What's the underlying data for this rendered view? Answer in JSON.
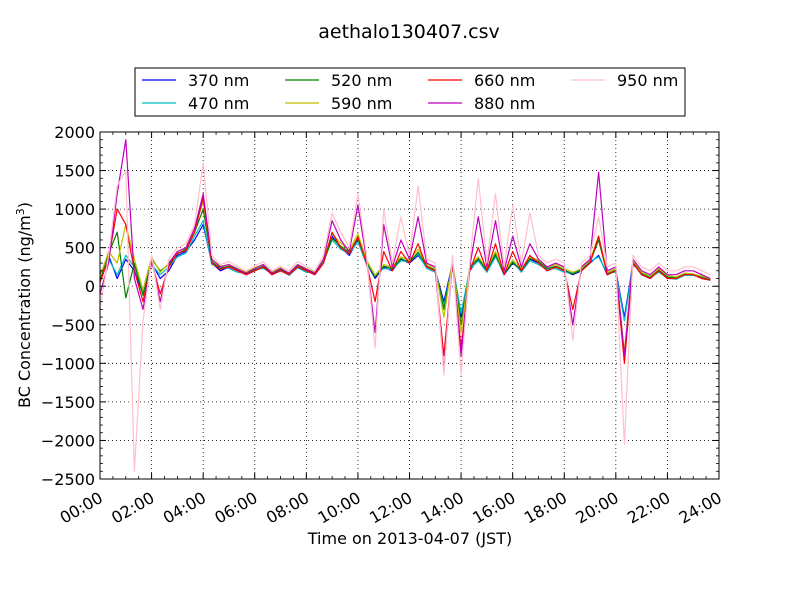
{
  "chart_data": {
    "type": "line",
    "title": "aethalo130407.csv",
    "xlabel": "Time on 2013-04-07 (JST)",
    "ylabel": "BC Concentration (ng/m",
    "ylabel_superscript": "3",
    "ylabel_suffix": ")",
    "xlim": [
      "00:00",
      "24:00"
    ],
    "ylim": [
      -2500,
      2000
    ],
    "x_tick_labels": [
      "00:00",
      "02:00",
      "04:00",
      "06:00",
      "08:00",
      "10:00",
      "12:00",
      "14:00",
      "16:00",
      "18:00",
      "20:00",
      "22:00",
      "24:00"
    ],
    "y_tick_labels": [
      "2000",
      "1500",
      "1000",
      "500",
      "0",
      "−500",
      "−1000",
      "−1500",
      "−2000",
      "−2500"
    ],
    "y_ticks": [
      2000,
      1500,
      1000,
      500,
      0,
      -500,
      -1000,
      -1500,
      -2000,
      -2500
    ],
    "grid": true,
    "legend_position": "top-center",
    "x": [
      "00:00",
      "00:20",
      "00:40",
      "01:00",
      "01:20",
      "01:40",
      "02:00",
      "02:20",
      "02:40",
      "03:00",
      "03:20",
      "03:40",
      "04:00",
      "04:20",
      "04:40",
      "05:00",
      "05:20",
      "05:40",
      "06:00",
      "06:20",
      "06:40",
      "07:00",
      "07:20",
      "07:40",
      "08:00",
      "08:20",
      "08:40",
      "09:00",
      "09:20",
      "09:40",
      "10:00",
      "10:20",
      "10:40",
      "11:00",
      "11:20",
      "11:40",
      "12:00",
      "12:20",
      "12:40",
      "13:00",
      "13:20",
      "13:40",
      "14:00",
      "14:20",
      "14:40",
      "15:00",
      "15:20",
      "15:40",
      "16:00",
      "16:20",
      "16:40",
      "17:00",
      "17:20",
      "17:40",
      "18:00",
      "18:20",
      "18:40",
      "19:00",
      "19:20",
      "19:40",
      "20:00",
      "20:20",
      "20:40",
      "21:00",
      "21:20",
      "21:40",
      "22:00",
      "22:20",
      "22:40",
      "23:00",
      "23:20",
      "23:40"
    ],
    "series": [
      {
        "name": "370 nm",
        "color": "#0000ff",
        "values": [
          150,
          400,
          100,
          350,
          200,
          -100,
          300,
          100,
          200,
          400,
          450,
          600,
          800,
          300,
          200,
          250,
          200,
          150,
          200,
          250,
          150,
          200,
          150,
          250,
          200,
          150,
          300,
          650,
          500,
          400,
          600,
          300,
          100,
          250,
          200,
          350,
          300,
          400,
          250,
          200,
          -200,
          300,
          -400,
          200,
          350,
          200,
          400,
          150,
          300,
          200,
          350,
          300,
          200,
          250,
          200,
          150,
          200,
          300,
          400,
          150,
          200,
          -400,
          300,
          150,
          100,
          200,
          100,
          100,
          150,
          150,
          100,
          80
        ]
      },
      {
        "name": "470 nm",
        "color": "#00bfbf",
        "values": [
          100,
          350,
          150,
          400,
          250,
          -80,
          280,
          150,
          250,
          380,
          430,
          650,
          850,
          280,
          250,
          230,
          180,
          170,
          220,
          230,
          170,
          210,
          140,
          240,
          180,
          170,
          320,
          600,
          480,
          420,
          580,
          280,
          150,
          230,
          220,
          330,
          320,
          420,
          230,
          180,
          -250,
          280,
          -350,
          220,
          330,
          180,
          380,
          170,
          320,
          180,
          330,
          280,
          220,
          230,
          180,
          170,
          220,
          320,
          380,
          170,
          180,
          -450,
          280,
          170,
          120,
          180,
          110,
          90,
          140,
          140,
          110,
          90
        ]
      },
      {
        "name": "520 nm",
        "color": "#008000",
        "values": [
          80,
          420,
          700,
          -150,
          300,
          -120,
          350,
          200,
          280,
          420,
          480,
          700,
          1000,
          320,
          230,
          260,
          210,
          160,
          210,
          260,
          160,
          220,
          160,
          260,
          210,
          160,
          310,
          620,
          520,
          440,
          620,
          320,
          120,
          260,
          230,
          360,
          310,
          440,
          260,
          210,
          -300,
          310,
          -500,
          240,
          360,
          210,
          420,
          160,
          310,
          210,
          360,
          320,
          230,
          260,
          210,
          160,
          210,
          310,
          600,
          160,
          210,
          -900,
          310,
          160,
          110,
          210,
          120,
          110,
          160,
          150,
          120,
          90
        ]
      },
      {
        "name": "590 nm",
        "color": "#bfbf00",
        "values": [
          120,
          450,
          300,
          800,
          350,
          -50,
          380,
          180,
          300,
          450,
          500,
          750,
          1100,
          350,
          260,
          280,
          230,
          180,
          240,
          280,
          180,
          240,
          170,
          280,
          230,
          180,
          340,
          680,
          560,
          460,
          680,
          340,
          140,
          280,
          250,
          380,
          340,
          480,
          280,
          230,
          -400,
          340,
          -600,
          260,
          380,
          230,
          450,
          180,
          340,
          230,
          380,
          340,
          250,
          280,
          230,
          180,
          230,
          340,
          650,
          180,
          230,
          -850,
          340,
          180,
          130,
          230,
          140,
          120,
          170,
          160,
          130,
          100
        ]
      },
      {
        "name": "660 nm",
        "color": "#ff0000",
        "values": [
          50,
          350,
          1000,
          800,
          200,
          -200,
          320,
          -100,
          250,
          430,
          460,
          700,
          1150,
          300,
          220,
          250,
          200,
          150,
          200,
          250,
          150,
          200,
          150,
          250,
          200,
          150,
          300,
          700,
          500,
          420,
          640,
          300,
          -200,
          450,
          200,
          450,
          300,
          550,
          250,
          200,
          -900,
          300,
          -800,
          200,
          500,
          200,
          550,
          150,
          450,
          200,
          400,
          300,
          200,
          250,
          200,
          -300,
          200,
          300,
          650,
          150,
          200,
          -1000,
          300,
          150,
          100,
          200,
          100,
          100,
          150,
          150,
          100,
          80
        ]
      },
      {
        "name": "880 nm",
        "color": "#bf00bf",
        "values": [
          -100,
          300,
          1200,
          1900,
          100,
          -300,
          350,
          -200,
          300,
          450,
          500,
          750,
          1200,
          350,
          250,
          280,
          220,
          170,
          230,
          280,
          170,
          230,
          170,
          280,
          220,
          170,
          350,
          850,
          600,
          450,
          1050,
          350,
          -600,
          800,
          250,
          600,
          350,
          900,
          300,
          250,
          -1100,
          350,
          -900,
          250,
          900,
          250,
          850,
          200,
          650,
          250,
          550,
          350,
          250,
          300,
          250,
          -500,
          250,
          350,
          1480,
          200,
          250,
          -900,
          350,
          200,
          150,
          250,
          150,
          150,
          200,
          200,
          150,
          100
        ]
      },
      {
        "name": "950 nm",
        "color": "#ffc0cb",
        "values": [
          -300,
          400,
          1300,
          1500,
          -2400,
          -450,
          400,
          -300,
          350,
          500,
          550,
          800,
          1600,
          400,
          280,
          320,
          250,
          200,
          260,
          320,
          200,
          260,
          200,
          320,
          250,
          200,
          400,
          950,
          700,
          500,
          1200,
          400,
          -800,
          1000,
          300,
          900,
          400,
          1300,
          350,
          300,
          -1150,
          400,
          -1150,
          300,
          1400,
          300,
          1200,
          250,
          1050,
          300,
          950,
          400,
          300,
          350,
          300,
          -700,
          300,
          400,
          900,
          250,
          300,
          -2050,
          400,
          250,
          200,
          300,
          200,
          200,
          250,
          250,
          200,
          150
        ]
      }
    ]
  }
}
